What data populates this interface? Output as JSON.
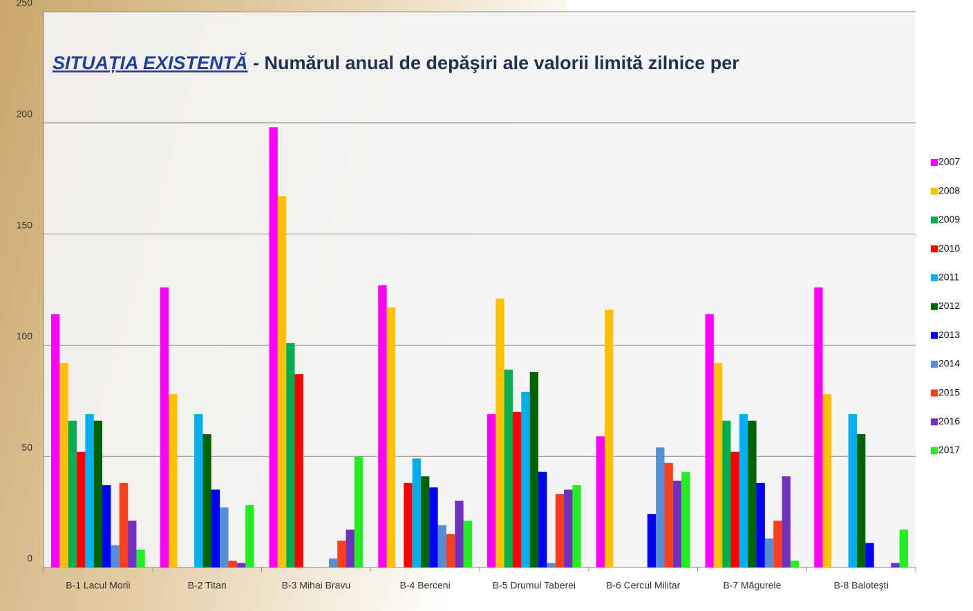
{
  "chart_data": {
    "type": "bar",
    "title_emphasis": "SITUAȚIA EXISTENTĂ",
    "title": " - Numărul anual de depăşiri ale valorii limită zilnice per",
    "categories": [
      "B-1 Lacul Morii",
      "B-2 Titan",
      "B-3 Mihai Bravu",
      "B-4 Berceni",
      "B-5 Drumul Taberei",
      "B-6 Cercul Militar",
      "B-7 Măgurele",
      "B-8 Baloteşti"
    ],
    "series": [
      {
        "name": "2007",
        "color": "#ff00ff",
        "values": [
          114,
          126,
          198,
          127,
          69,
          59,
          114,
          126
        ]
      },
      {
        "name": "2008",
        "color": "#ffc000",
        "values": [
          92,
          78,
          167,
          117,
          121,
          116,
          92,
          78
        ]
      },
      {
        "name": "2009",
        "color": "#00b050",
        "values": [
          66,
          0,
          101,
          0,
          89,
          0,
          66,
          0
        ]
      },
      {
        "name": "2010",
        "color": "#ff0000",
        "values": [
          52,
          0,
          87,
          38,
          70,
          0,
          52,
          0
        ]
      },
      {
        "name": "2011",
        "color": "#00b0f0",
        "values": [
          69,
          69,
          0,
          49,
          79,
          0,
          69,
          69
        ]
      },
      {
        "name": "2012",
        "color": "#006400",
        "values": [
          66,
          60,
          0,
          41,
          88,
          0,
          66,
          60
        ]
      },
      {
        "name": "2013",
        "color": "#0000ff",
        "values": [
          37,
          35,
          0,
          36,
          43,
          24,
          38,
          11
        ]
      },
      {
        "name": "2014",
        "color": "#558ed5",
        "values": [
          10,
          27,
          4,
          19,
          2,
          54,
          13,
          0
        ]
      },
      {
        "name": "2015",
        "color": "#ff3f1a",
        "values": [
          38,
          3,
          12,
          15,
          33,
          47,
          21,
          0
        ]
      },
      {
        "name": "2016",
        "color": "#7030c0",
        "values": [
          21,
          2,
          17,
          30,
          35,
          39,
          41,
          2
        ]
      },
      {
        "name": "2017",
        "color": "#22ee22",
        "values": [
          8,
          28,
          50,
          21,
          37,
          43,
          3,
          17
        ]
      }
    ],
    "ylim": [
      0,
      250
    ],
    "yticks": [
      0,
      50,
      100,
      150,
      200,
      250
    ],
    "grid": true,
    "legend": "right"
  }
}
